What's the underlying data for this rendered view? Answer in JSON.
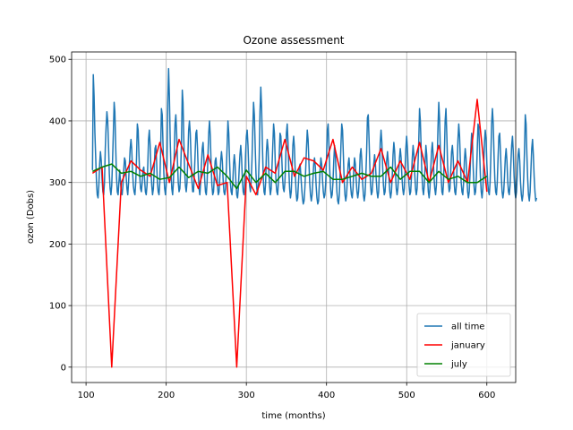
{
  "chart_data": {
    "type": "line",
    "title": "Ozone assessment",
    "xlabel": "time (months)",
    "ylabel": "ozon (Dobs)",
    "xlim": [
      82,
      636
    ],
    "ylim": [
      -25,
      512
    ],
    "xticks": [
      100,
      200,
      300,
      400,
      500,
      600
    ],
    "yticks": [
      0,
      100,
      200,
      300,
      400,
      500
    ],
    "grid": true,
    "legend_position": "lower-right",
    "series": [
      {
        "name": "all time",
        "color": "#1f77b4",
        "x_start": 108,
        "x_step": 1,
        "y": [
          320,
          475,
          440,
          380,
          340,
          300,
          280,
          275,
          295,
          330,
          350,
          335,
          305,
          285,
          280,
          300,
          355,
          390,
          415,
          400,
          360,
          315,
          290,
          280,
          295,
          335,
          380,
          430,
          415,
          360,
          310,
          285,
          280,
          300,
          320,
          300,
          285,
          280,
          295,
          320,
          340,
          335,
          310,
          290,
          280,
          300,
          330,
          355,
          370,
          355,
          320,
          295,
          285,
          280,
          300,
          340,
          395,
          385,
          345,
          310,
          290,
          285,
          300,
          320,
          325,
          305,
          285,
          280,
          295,
          330,
          370,
          385,
          360,
          320,
          295,
          280,
          290,
          320,
          355,
          360,
          335,
          300,
          285,
          280,
          300,
          350,
          420,
          410,
          360,
          315,
          290,
          280,
          295,
          330,
          430,
          485,
          440,
          370,
          320,
          290,
          280,
          300,
          345,
          395,
          410,
          380,
          335,
          300,
          285,
          290,
          320,
          365,
          450,
          430,
          370,
          320,
          295,
          285,
          300,
          340,
          385,
          400,
          380,
          340,
          305,
          285,
          285,
          310,
          345,
          380,
          385,
          355,
          315,
          290,
          280,
          300,
          330,
          355,
          365,
          340,
          305,
          285,
          280,
          300,
          340,
          380,
          400,
          375,
          330,
          295,
          280,
          285,
          310,
          335,
          340,
          320,
          295,
          280,
          285,
          310,
          335,
          350,
          335,
          305,
          285,
          280,
          290,
          320,
          360,
          400,
          380,
          335,
          300,
          285,
          280,
          300,
          330,
          345,
          330,
          300,
          280,
          275,
          290,
          320,
          345,
          360,
          340,
          305,
          285,
          280,
          300,
          345,
          375,
          385,
          360,
          320,
          295,
          285,
          300,
          335,
          385,
          430,
          410,
          360,
          315,
          290,
          280,
          300,
          340,
          415,
          455,
          420,
          360,
          310,
          285,
          280,
          300,
          350,
          370,
          355,
          320,
          295,
          280,
          290,
          325,
          360,
          395,
          380,
          335,
          300,
          285,
          280,
          300,
          345,
          380,
          375,
          345,
          310,
          290,
          285,
          300,
          330,
          380,
          395,
          365,
          320,
          290,
          275,
          285,
          320,
          360,
          375,
          355,
          315,
          285,
          270,
          275,
          300,
          325,
          330,
          310,
          290,
          275,
          265,
          270,
          290,
          320,
          355,
          385,
          370,
          335,
          300,
          280,
          270,
          280,
          305,
          330,
          340,
          325,
          295,
          275,
          265,
          270,
          295,
          320,
          340,
          330,
          305,
          285,
          275,
          280,
          300,
          340,
          385,
          395,
          360,
          320,
          290,
          275,
          280,
          300,
          335,
          360,
          345,
          310,
          285,
          270,
          265,
          280,
          315,
          360,
          395,
          385,
          345,
          305,
          280,
          270,
          280,
          305,
          330,
          340,
          320,
          295,
          280,
          275,
          290,
          320,
          340,
          330,
          305,
          285,
          275,
          285,
          310,
          345,
          355,
          335,
          300,
          280,
          270,
          280,
          310,
          350,
          405,
          410,
          370,
          325,
          295,
          280,
          285,
          305,
          330,
          345,
          330,
          305,
          285,
          275,
          285,
          320,
          365,
          385,
          365,
          325,
          295,
          280,
          285,
          310,
          335,
          350,
          335,
          305,
          285,
          275,
          285,
          310,
          345,
          365,
          350,
          315,
          290,
          280,
          290,
          315,
          340,
          355,
          340,
          310,
          290,
          280,
          290,
          320,
          355,
          375,
          355,
          320,
          295,
          280,
          285,
          310,
          340,
          360,
          345,
          315,
          290,
          280,
          290,
          325,
          365,
          420,
          400,
          355,
          315,
          290,
          280,
          295,
          330,
          360,
          345,
          310,
          285,
          275,
          290,
          320,
          350,
          365,
          345,
          310,
          290,
          280,
          295,
          335,
          390,
          430,
          405,
          355,
          310,
          285,
          280,
          300,
          345,
          400,
          420,
          380,
          330,
          300,
          285,
          290,
          320,
          350,
          360,
          340,
          305,
          285,
          280,
          295,
          330,
          370,
          395,
          375,
          335,
          300,
          285,
          280,
          300,
          335,
          355,
          340,
          310,
          285,
          275,
          285,
          315,
          355,
          380,
          365,
          325,
          295,
          280,
          285,
          310,
          350,
          395,
          390,
          350,
          310,
          285,
          275,
          290,
          325,
          365,
          385,
          370,
          330,
          300,
          285,
          280,
          300,
          340,
          395,
          420,
          395,
          345,
          305,
          285,
          280,
          300,
          340,
          375,
          380,
          350,
          310,
          285,
          275,
          285,
          310,
          340,
          355,
          335,
          305,
          285,
          280,
          295,
          330,
          360,
          375,
          350,
          310,
          285,
          275,
          285,
          315,
          345,
          355,
          335,
          300,
          280,
          270,
          280,
          310,
          350,
          410,
          395,
          345,
          305,
          280,
          270,
          285,
          320,
          355,
          370,
          345,
          310,
          285,
          270,
          275
        ]
      },
      {
        "name": "january",
        "color": "#ff0000",
        "x": [
          108,
          120,
          132,
          144,
          156,
          168,
          180,
          192,
          204,
          216,
          228,
          240,
          252,
          264,
          276,
          288,
          300,
          312,
          324,
          336,
          348,
          360,
          372,
          384,
          396,
          408,
          420,
          432,
          444,
          456,
          468,
          480,
          492,
          504,
          516,
          528,
          540,
          552,
          564,
          576,
          588,
          600
        ],
        "y": [
          315,
          325,
          0,
          300,
          335,
          320,
          310,
          365,
          300,
          370,
          330,
          290,
          345,
          295,
          300,
          0,
          310,
          280,
          325,
          315,
          370,
          310,
          340,
          335,
          320,
          370,
          300,
          325,
          305,
          315,
          355,
          300,
          335,
          305,
          365,
          300,
          360,
          300,
          335,
          300,
          435,
          285
        ]
      },
      {
        "name": "july",
        "color": "#008000",
        "x": [
          108,
          120,
          132,
          144,
          156,
          168,
          180,
          192,
          204,
          216,
          228,
          240,
          252,
          264,
          276,
          288,
          300,
          312,
          324,
          336,
          348,
          360,
          372,
          384,
          396,
          408,
          420,
          432,
          444,
          456,
          468,
          480,
          492,
          504,
          516,
          528,
          540,
          552,
          564,
          576,
          588,
          600
        ],
        "y": [
          318,
          325,
          330,
          315,
          318,
          310,
          315,
          305,
          308,
          325,
          308,
          318,
          315,
          325,
          310,
          290,
          320,
          300,
          315,
          300,
          318,
          318,
          310,
          315,
          318,
          305,
          305,
          310,
          315,
          310,
          310,
          325,
          305,
          318,
          318,
          300,
          318,
          305,
          310,
          300,
          300,
          310
        ]
      }
    ]
  }
}
